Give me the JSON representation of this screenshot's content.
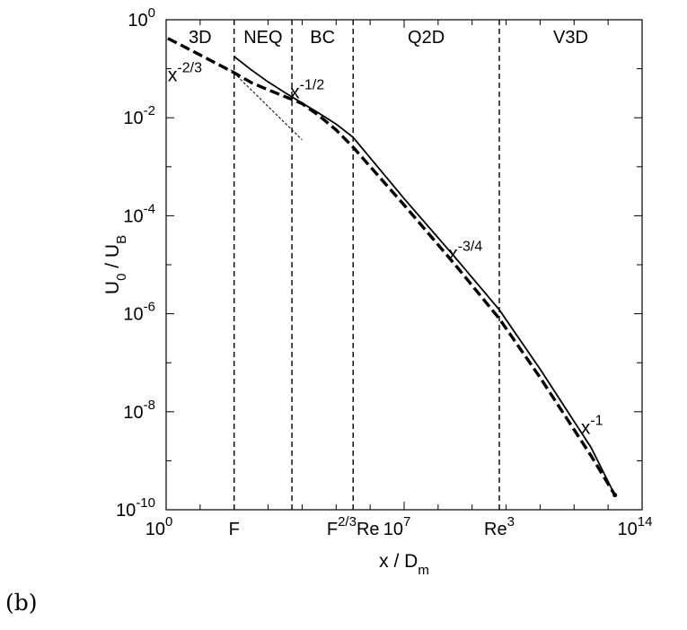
{
  "panel_tag": "(b)",
  "chart_data": {
    "type": "line",
    "title": "",
    "xlabel": {
      "base": "x / D",
      "sub": "m"
    },
    "ylabel": {
      "base": "U",
      "sub1": "0",
      "mid": " / U",
      "sub2": "B"
    },
    "x_scale": "log10",
    "y_scale": "log10",
    "xlim_log10": [
      0,
      14
    ],
    "ylim_log10": [
      -10,
      0
    ],
    "grid": false,
    "x_ticks": [
      {
        "at": 0,
        "base": "10",
        "exp": "0"
      },
      {
        "at": 7,
        "base": "10",
        "exp": "7"
      },
      {
        "at": 14,
        "base": "10",
        "exp": "14"
      }
    ],
    "y_ticks": [
      {
        "at": 0,
        "base": "10",
        "exp": "0"
      },
      {
        "at": -2,
        "base": "10",
        "exp": "-2"
      },
      {
        "at": -4,
        "base": "10",
        "exp": "-4"
      },
      {
        "at": -6,
        "base": "10",
        "exp": "-6"
      },
      {
        "at": -8,
        "base": "10",
        "exp": "-8"
      },
      {
        "at": -10,
        "base": "10",
        "exp": "-10"
      }
    ],
    "x_markers": [
      {
        "at": 2.0,
        "label": "F",
        "label_sup": ""
      },
      {
        "at": 5.5,
        "label": "F",
        "label_sup": "2/3",
        "label_tail": "Re"
      },
      {
        "at": 9.8,
        "label": "Re",
        "label_sup": "3"
      }
    ],
    "vlines_log10x": [
      2.0,
      3.7,
      5.5,
      9.8
    ],
    "regions": [
      {
        "label": "3D",
        "center": 1.0
      },
      {
        "label": "NEQ",
        "center": 2.85
      },
      {
        "label": "BC",
        "center": 4.6
      },
      {
        "label": "Q2D",
        "center": 7.65
      },
      {
        "label": "V3D",
        "center": 11.9
      }
    ],
    "series": [
      {
        "style": "dashed-thick",
        "x_log10": [
          0.05,
          1.0,
          2.0,
          2.5,
          3.0,
          3.5,
          4.0,
          4.5,
          5.0,
          5.5,
          7.0,
          8.5,
          9.8,
          11.0,
          12.5,
          13.2
        ],
        "y_log10": [
          -0.38,
          -0.72,
          -1.08,
          -1.28,
          -1.43,
          -1.57,
          -1.71,
          -1.96,
          -2.25,
          -2.6,
          -3.78,
          -5.0,
          -6.1,
          -7.3,
          -8.9,
          -9.7
        ]
      },
      {
        "style": "solid",
        "x_log10": [
          2.0,
          2.5,
          3.0,
          3.5,
          4.0,
          4.5,
          5.0,
          5.5,
          7.0,
          8.5,
          9.8,
          11.0,
          12.5,
          13.2
        ],
        "y_log10": [
          -0.75,
          -1.02,
          -1.27,
          -1.49,
          -1.7,
          -1.91,
          -2.13,
          -2.4,
          -3.65,
          -4.85,
          -5.92,
          -7.13,
          -8.73,
          -9.7
        ]
      },
      {
        "style": "thin-dashed",
        "x_log10": [
          1.9,
          4.0
        ],
        "y_log10": [
          -1.02,
          -2.45
        ]
      }
    ],
    "annotations": [
      {
        "base": "x",
        "exp": "-2/3",
        "at_x": 0.05,
        "at_y": -1.25
      },
      {
        "base": "x",
        "exp": "-1/2",
        "at_x": 3.65,
        "at_y": -1.6
      },
      {
        "base": "x",
        "exp": "-3/4",
        "at_x": 8.3,
        "at_y": -4.9
      },
      {
        "base": "x",
        "exp": "-1",
        "at_x": 12.2,
        "at_y": -8.45
      }
    ]
  }
}
